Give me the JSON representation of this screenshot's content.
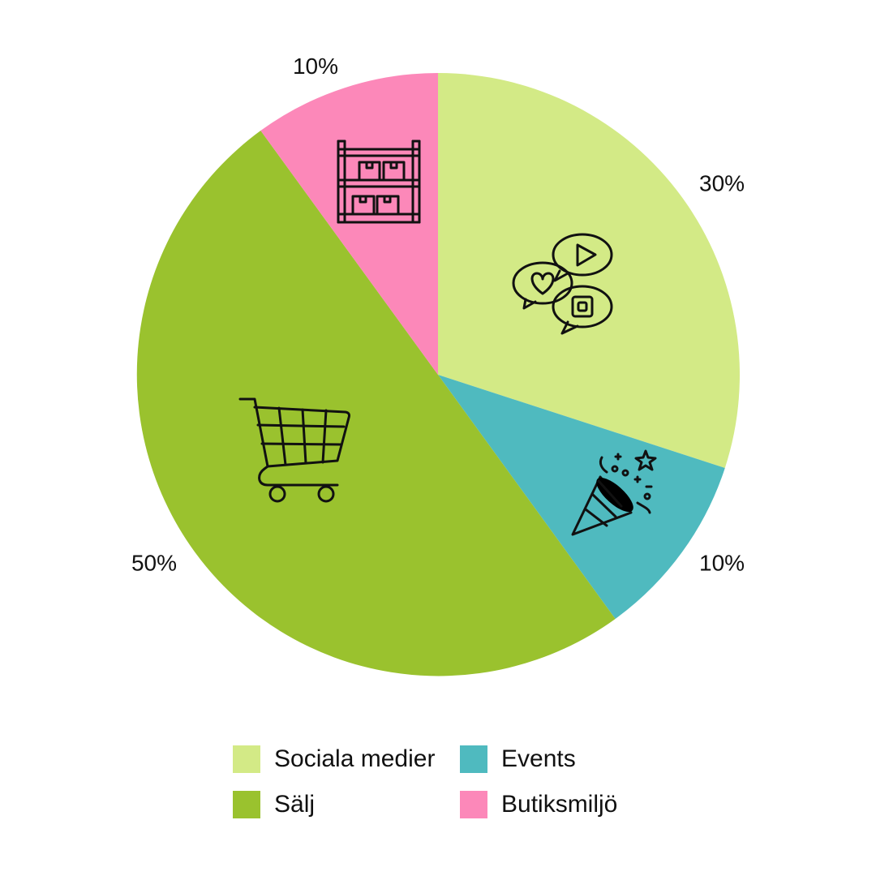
{
  "chart_data": {
    "type": "pie",
    "title": "",
    "start_angle_deg": 0,
    "direction": "clockwise",
    "slices": [
      {
        "label": "Sociala medier",
        "value": 30,
        "value_label": "30%",
        "color": "#d3ea86",
        "icon": "social-media-chat-bubbles-icon"
      },
      {
        "label": "Events",
        "value": 10,
        "value_label": "10%",
        "color": "#4fbabf",
        "icon": "party-popper-icon"
      },
      {
        "label": "Sälj",
        "value": 50,
        "value_label": "50%",
        "color": "#9ac22e",
        "icon": "shopping-cart-icon"
      },
      {
        "label": "Butiksmiljö",
        "value": 10,
        "value_label": "10%",
        "color": "#fc88b9",
        "icon": "store-shelf-boxes-icon"
      }
    ],
    "legend_position": "bottom"
  },
  "legend": {
    "rows": [
      [
        {
          "label": "Sociala medier",
          "color": "#d3ea86"
        },
        {
          "label": "Events",
          "color": "#4fbabf"
        }
      ],
      [
        {
          "label": "Sälj",
          "color": "#9ac22e"
        },
        {
          "label": "Butiksmiljö",
          "color": "#fc88b9"
        }
      ]
    ]
  }
}
